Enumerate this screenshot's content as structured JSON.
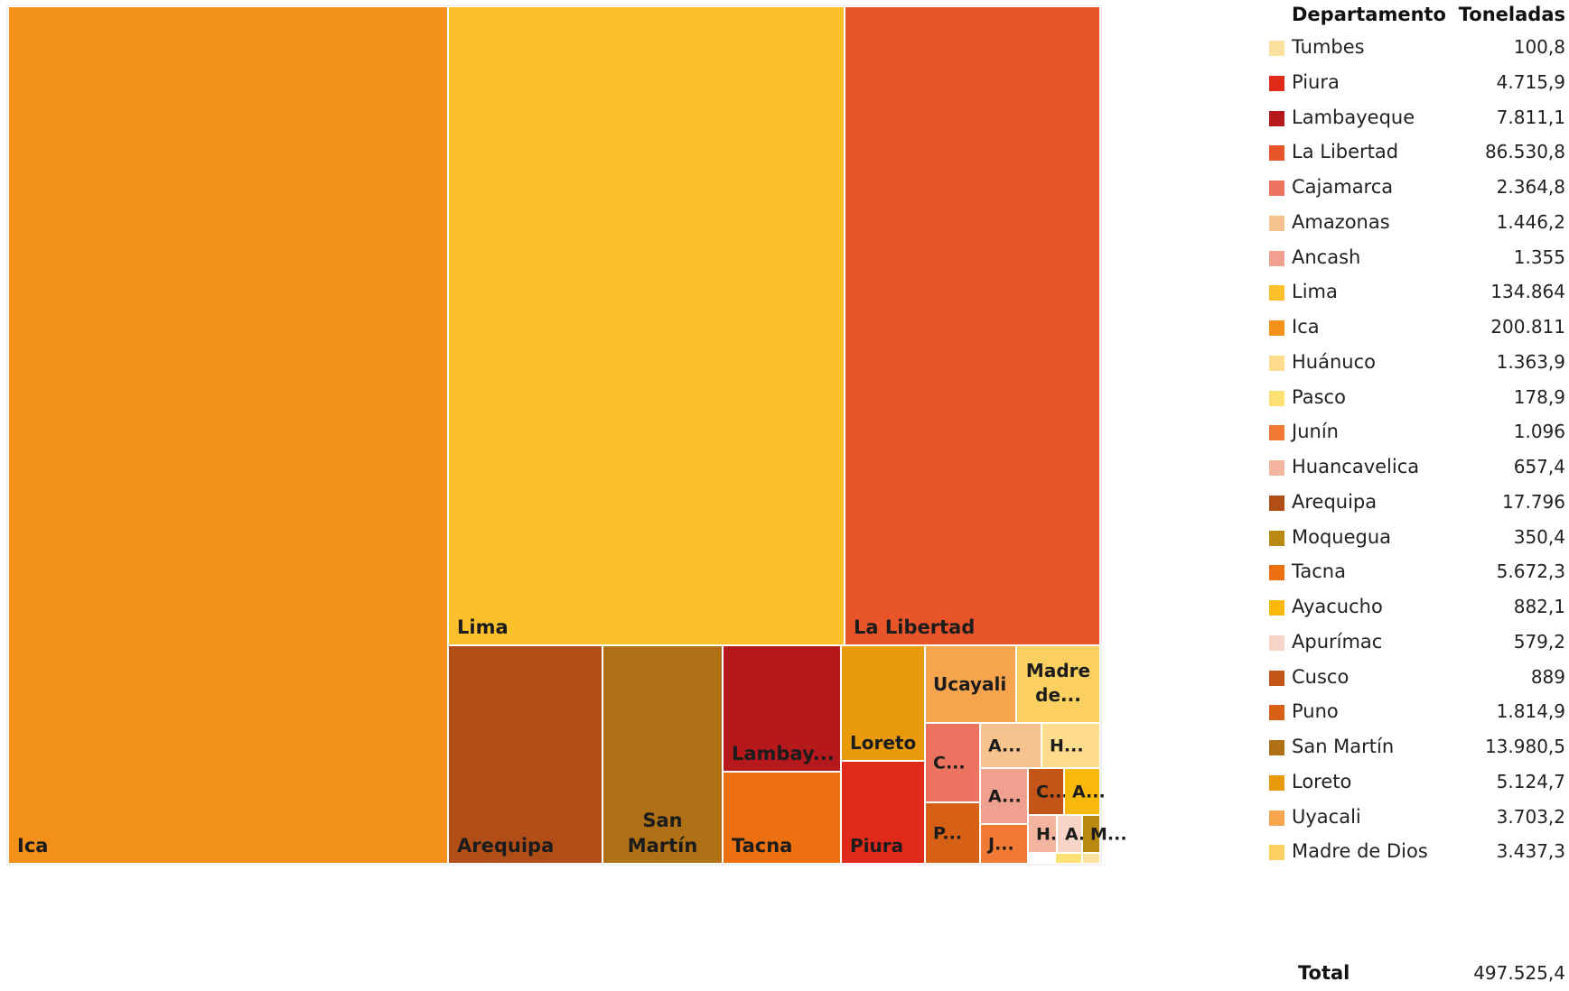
{
  "chart_data": {
    "type": "treemap",
    "title": "",
    "unit": "Toneladas",
    "legend": {
      "header_name": "Departamento",
      "header_value": "Toneladas",
      "total_label": "Total",
      "total_value": "497.525,4"
    },
    "items": [
      {
        "name": "Tumbes",
        "value": 100.8,
        "display": "100,8",
        "color": "#FBE0A0"
      },
      {
        "name": "Piura",
        "value": 4715.9,
        "display": "4.715,9",
        "color": "#E12B1A"
      },
      {
        "name": "Lambayeque",
        "value": 7811.1,
        "display": "7.811,1",
        "color": "#B5191B"
      },
      {
        "name": "La Libertad",
        "value": 86530.8,
        "display": "86.530,8",
        "color": "#E9552B"
      },
      {
        "name": "Cajamarca",
        "value": 2364.8,
        "display": "2.364,8",
        "color": "#EC7360"
      },
      {
        "name": "Amazonas",
        "value": 1446.2,
        "display": "1.446,2",
        "color": "#F6C28E"
      },
      {
        "name": "Ancash",
        "value": 1355,
        "display": "1.355",
        "color": "#F0A08E"
      },
      {
        "name": "Lima",
        "value": 134864,
        "display": "134.864",
        "color": "#FCC12A"
      },
      {
        "name": "Ica",
        "value": 200811,
        "display": "200.811",
        "color": "#F2901A"
      },
      {
        "name": "Huánuco",
        "value": 1363.9,
        "display": "1.363,9",
        "color": "#FDDC8D"
      },
      {
        "name": "Pasco",
        "value": 178.9,
        "display": "178,9",
        "color": "#FDDF74"
      },
      {
        "name": "Junín",
        "value": 1096,
        "display": "1.096",
        "color": "#F07A33"
      },
      {
        "name": "Huancavelica",
        "value": 657.4,
        "display": "657,4",
        "color": "#F4B59E"
      },
      {
        "name": "Arequipa",
        "value": 17796,
        "display": "17.796",
        "color": "#B14E17"
      },
      {
        "name": "Moquegua",
        "value": 350.4,
        "display": "350,4",
        "color": "#B98912"
      },
      {
        "name": "Tacna",
        "value": 5672.3,
        "display": "5.672,3",
        "color": "#EC700F"
      },
      {
        "name": "Ayacucho",
        "value": 882.1,
        "display": "882,1",
        "color": "#FAB90A"
      },
      {
        "name": "Apurímac",
        "value": 579.2,
        "display": "579,2",
        "color": "#F7D4C8"
      },
      {
        "name": "Cusco",
        "value": 889,
        "display": "889",
        "color": "#C45518"
      },
      {
        "name": "Puno",
        "value": 1814.9,
        "display": "1.814,9",
        "color": "#D66016"
      },
      {
        "name": "San Martín",
        "value": 13980.5,
        "display": "13.980,5",
        "color": "#B07016"
      },
      {
        "name": "Loreto",
        "value": 5124.7,
        "display": "5.124,7",
        "color": "#E89A0A"
      },
      {
        "name": "Uyacali",
        "value": 3703.2,
        "display": "3.703,2",
        "color": "#F6A54E"
      },
      {
        "name": "Madre de Dios",
        "value": 3437.3,
        "display": "3.437,3",
        "color": "#FCD060"
      }
    ],
    "tiles": [
      {
        "name": "Ica",
        "label": [
          "Ica"
        ],
        "color": "#F2901A"
      },
      {
        "name": "Lima",
        "label": [
          "Lima"
        ],
        "color": "#FCC12A"
      },
      {
        "name": "La Libertad",
        "label": [
          "La Libertad"
        ],
        "color": "#E9552B"
      },
      {
        "name": "Arequipa",
        "label": [
          "Arequipa"
        ],
        "color": "#B14E17"
      },
      {
        "name": "San Martín",
        "label": [
          "San",
          "Martín"
        ],
        "color": "#B07016"
      },
      {
        "name": "Lambayeque",
        "label": [
          "Lambay..."
        ],
        "color": "#B5191B"
      },
      {
        "name": "Tacna",
        "label": [
          "Tacna"
        ],
        "color": "#EC700F"
      },
      {
        "name": "Loreto",
        "label": [
          "Loreto"
        ],
        "color": "#E89A0A"
      },
      {
        "name": "Piura",
        "label": [
          "Piura"
        ],
        "color": "#E12B1A"
      },
      {
        "name": "Uyacali",
        "label": [
          "Ucayali"
        ],
        "color": "#F6A54E"
      },
      {
        "name": "Madre de Dios",
        "label": [
          "Madre",
          "de..."
        ],
        "color": "#FCD060"
      },
      {
        "name": "Cajamarca",
        "label": [
          "C..."
        ],
        "color": "#EC7360"
      },
      {
        "name": "Puno",
        "label": [
          "P..."
        ],
        "color": "#D66016"
      },
      {
        "name": "Amazonas",
        "label": [
          "A..."
        ],
        "color": "#F6C28E"
      },
      {
        "name": "Huánuco",
        "label": [
          "H..."
        ],
        "color": "#FDDC8D"
      },
      {
        "name": "Ancash",
        "label": [
          "A..."
        ],
        "color": "#F0A08E"
      },
      {
        "name": "Cusco",
        "label": [
          "C..."
        ],
        "color": "#C45518"
      },
      {
        "name": "Ayacucho",
        "label": [
          "A..."
        ],
        "color": "#FAB90A"
      },
      {
        "name": "Junín",
        "label": [
          "J..."
        ],
        "color": "#F07A33"
      },
      {
        "name": "Huancavelica",
        "label": [
          "H..."
        ],
        "color": "#F4B59E"
      },
      {
        "name": "Apurímac",
        "label": [
          "A..."
        ],
        "color": "#F7D4C8"
      },
      {
        "name": "Moquegua",
        "label": [
          "M..."
        ],
        "color": "#B98912"
      },
      {
        "name": "Pasco",
        "label": [],
        "color": "#FDDF74"
      },
      {
        "name": "Tumbes",
        "label": [],
        "color": "#FBE0A0"
      }
    ]
  }
}
